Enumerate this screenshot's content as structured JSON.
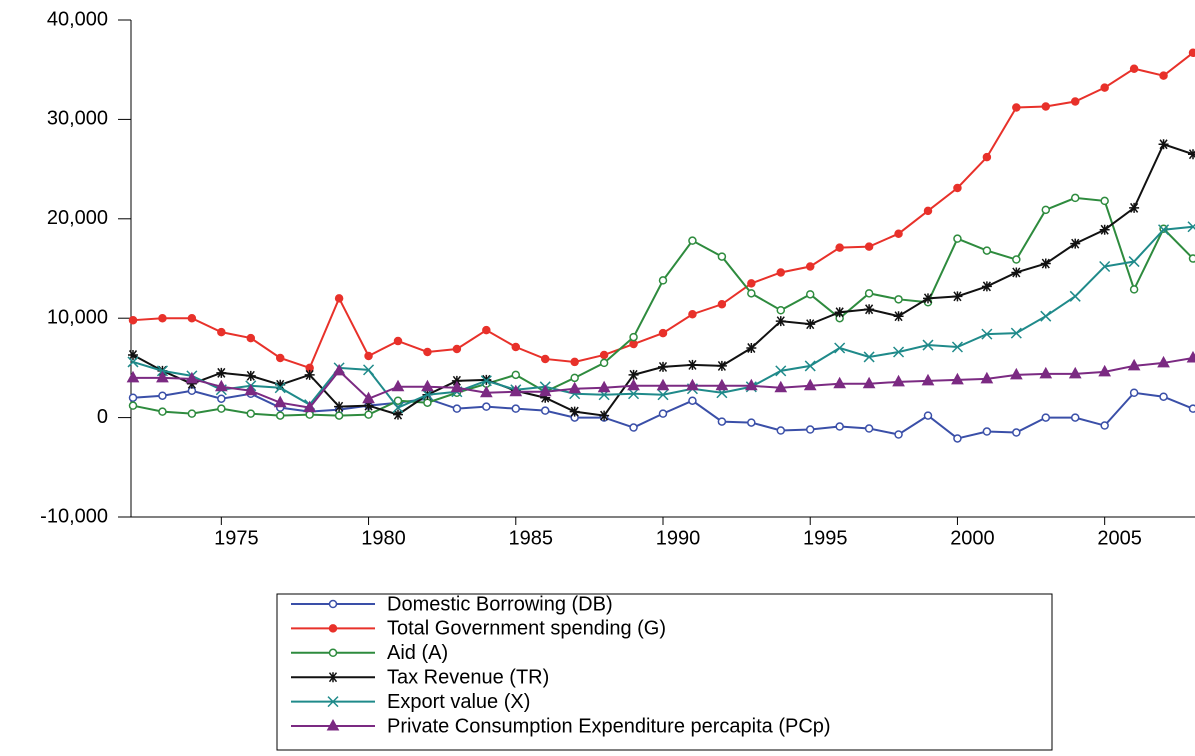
{
  "chart_data": {
    "type": "line",
    "x": [
      1972,
      1973,
      1974,
      1975,
      1976,
      1977,
      1978,
      1979,
      1980,
      1981,
      1982,
      1983,
      1984,
      1985,
      1986,
      1987,
      1988,
      1989,
      1990,
      1991,
      1992,
      1993,
      1994,
      1995,
      1996,
      1997,
      1998,
      1999,
      2000,
      2001,
      2002,
      2003,
      2004,
      2005,
      2006,
      2007,
      2008
    ],
    "xlim": [
      1972,
      2008
    ],
    "xticks": [
      1975,
      1980,
      1985,
      1990,
      1995,
      2000,
      2005
    ],
    "ylim": [
      -10000,
      40000
    ],
    "yticks": [
      {
        "value": -10000,
        "label": "-10,000"
      },
      0,
      {
        "value": 10000,
        "label": "10,000"
      },
      {
        "value": 20000,
        "label": "20,000"
      },
      {
        "value": 30000,
        "label": "30,000"
      },
      {
        "value": 40000,
        "label": "40,000"
      }
    ],
    "series": [
      {
        "name": "Domestic Borrowing (DB)",
        "color": "#3a4fa8",
        "marker": "open-circle",
        "values": [
          2000,
          2200,
          2700,
          1900,
          2400,
          1000,
          600,
          800,
          1200,
          1500,
          1900,
          900,
          1100,
          900,
          700,
          0,
          0,
          -1000,
          400,
          1700,
          -400,
          -500,
          -1300,
          -1200,
          -900,
          -1100,
          -1700,
          200,
          -2100,
          -1400,
          -1500,
          0,
          0,
          -800,
          2500,
          2100,
          900
        ]
      },
      {
        "name": "Total Government spending (G)",
        "color": "#e8312a",
        "marker": "filled-circle",
        "values": [
          9800,
          10000,
          10000,
          8600,
          8000,
          6000,
          5000,
          12000,
          6200,
          7700,
          6600,
          6900,
          8800,
          7100,
          5900,
          5600,
          6300,
          7400,
          8500,
          10400,
          11400,
          13500,
          14600,
          15200,
          17100,
          17200,
          18500,
          20800,
          23100,
          26200,
          31200,
          31300,
          31800,
          33200,
          35100,
          34400,
          36700
        ]
      },
      {
        "name": "Aid (A)",
        "color": "#2e8b3e",
        "marker": "open-circle",
        "values": [
          1200,
          600,
          400,
          900,
          400,
          200,
          300,
          200,
          300,
          1700,
          1500,
          2500,
          3400,
          4300,
          2600,
          4000,
          5500,
          8100,
          13800,
          17800,
          16200,
          12500,
          10800,
          12400,
          10000,
          12500,
          11900,
          11600,
          18000,
          16800,
          15900,
          20900,
          22100,
          21800,
          12900,
          19000,
          16000
        ]
      },
      {
        "name": "Tax Revenue (TR)",
        "color": "#111111",
        "marker": "star",
        "values": [
          6300,
          4700,
          3400,
          4500,
          4200,
          3300,
          4300,
          1100,
          1200,
          300,
          2300,
          3700,
          3800,
          2700,
          2000,
          600,
          200,
          4300,
          5100,
          5300,
          5200,
          7000,
          9700,
          9400,
          10600,
          10900,
          10200,
          12000,
          12200,
          13200,
          14600,
          15500,
          17500,
          18900,
          21100,
          27500,
          26500
        ]
      },
      {
        "name": "Export value (X)",
        "color": "#1f8a8a",
        "marker": "cross",
        "values": [
          5600,
          4700,
          4200,
          2800,
          3200,
          3000,
          1300,
          5000,
          4800,
          1000,
          2300,
          2600,
          3700,
          2800,
          3100,
          2400,
          2300,
          2400,
          2300,
          2900,
          2500,
          3100,
          4700,
          5200,
          7000,
          6100,
          6600,
          7300,
          7100,
          8400,
          8500,
          10200,
          12200,
          15200,
          15700,
          18900,
          19200
        ]
      },
      {
        "name": "Private Consumption Expenditure percapita (PCp)",
        "color": "#7b2a82",
        "marker": "triangle",
        "values": [
          4000,
          4000,
          3900,
          3100,
          2700,
          1500,
          1000,
          4700,
          1900,
          3100,
          3100,
          3000,
          2500,
          2600,
          2600,
          2900,
          3000,
          3200,
          3200,
          3200,
          3200,
          3200,
          3000,
          3200,
          3400,
          3400,
          3600,
          3700,
          3800,
          3900,
          4300,
          4400,
          4400,
          4600,
          5200,
          5500,
          6000
        ]
      }
    ]
  }
}
